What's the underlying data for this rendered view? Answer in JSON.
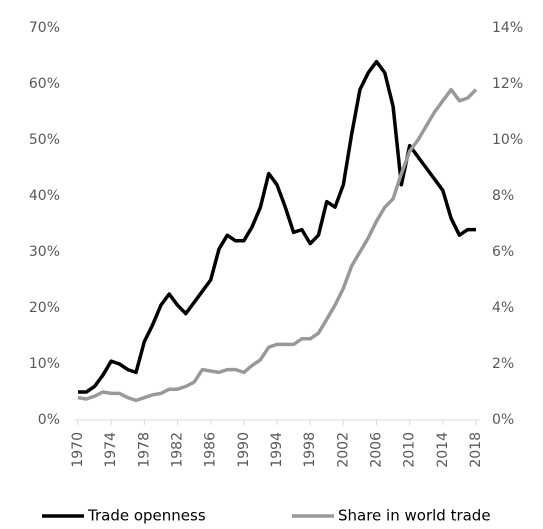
{
  "chart_data": {
    "type": "line",
    "x": [
      1970,
      1971,
      1972,
      1973,
      1974,
      1975,
      1976,
      1977,
      1978,
      1979,
      1980,
      1981,
      1982,
      1983,
      1984,
      1985,
      1986,
      1987,
      1988,
      1989,
      1990,
      1991,
      1992,
      1993,
      1994,
      1995,
      1996,
      1997,
      1998,
      1999,
      2000,
      2001,
      2002,
      2003,
      2004,
      2005,
      2006,
      2007,
      2008,
      2009,
      2010,
      2011,
      2012,
      2013,
      2014,
      2015,
      2016,
      2017,
      2018
    ],
    "xlim": [
      1970,
      2018
    ],
    "xticks": [
      1970,
      1974,
      1978,
      1982,
      1986,
      1990,
      1994,
      1998,
      2002,
      2006,
      2010,
      2014,
      2018
    ],
    "ylim": [
      0,
      70
    ],
    "yticks": [
      {
        "value": 0,
        "label": "0%"
      },
      {
        "value": 10,
        "label": "10%"
      },
      {
        "value": 20,
        "label": "20%"
      },
      {
        "value": 30,
        "label": "30%"
      },
      {
        "value": 40,
        "label": "40%"
      },
      {
        "value": 50,
        "label": "50%"
      },
      {
        "value": 60,
        "label": "60%"
      },
      {
        "value": 70,
        "label": "70%"
      }
    ],
    "y2lim": [
      0,
      14
    ],
    "y2ticks": [
      {
        "value": 0,
        "label": "0%"
      },
      {
        "value": 2,
        "label": "2%"
      },
      {
        "value": 4,
        "label": "4%"
      },
      {
        "value": 6,
        "label": "6%"
      },
      {
        "value": 8,
        "label": "8%"
      },
      {
        "value": 10,
        "label": "10%"
      },
      {
        "value": 12,
        "label": "12%"
      },
      {
        "value": 14,
        "label": "14%"
      }
    ],
    "grid": false,
    "legend": "bottom",
    "series": [
      {
        "name": "Trade openness",
        "color": "#000000",
        "values": [
          5,
          5,
          6,
          8,
          10.5,
          10,
          9,
          8.5,
          14,
          17,
          20.5,
          22.5,
          20.5,
          19,
          21,
          23,
          25,
          30.5,
          33,
          32,
          32,
          34.5,
          38,
          44,
          42,
          38,
          33.5,
          34,
          31.5,
          33,
          39,
          38,
          42,
          51,
          59,
          62,
          64,
          62,
          56,
          42,
          49,
          47,
          45,
          43,
          41,
          36,
          33,
          34,
          34
        ]
      },
      {
        "name": "Share in world trade",
        "color": "#999999",
        "axis": "y2",
        "values": [
          0.8,
          0.75,
          0.85,
          1.0,
          0.95,
          0.95,
          0.8,
          0.7,
          0.8,
          0.9,
          0.95,
          1.1,
          1.1,
          1.2,
          1.35,
          1.8,
          1.75,
          1.7,
          1.8,
          1.8,
          1.7,
          1.95,
          2.15,
          2.6,
          2.7,
          2.7,
          2.7,
          2.9,
          2.9,
          3.1,
          3.6,
          4.1,
          4.7,
          5.5,
          6.0,
          6.5,
          7.1,
          7.6,
          7.9,
          8.8,
          9.6,
          10.0,
          10.5,
          11.0,
          11.4,
          11.8,
          11.4,
          11.5,
          11.8
        ]
      }
    ]
  }
}
